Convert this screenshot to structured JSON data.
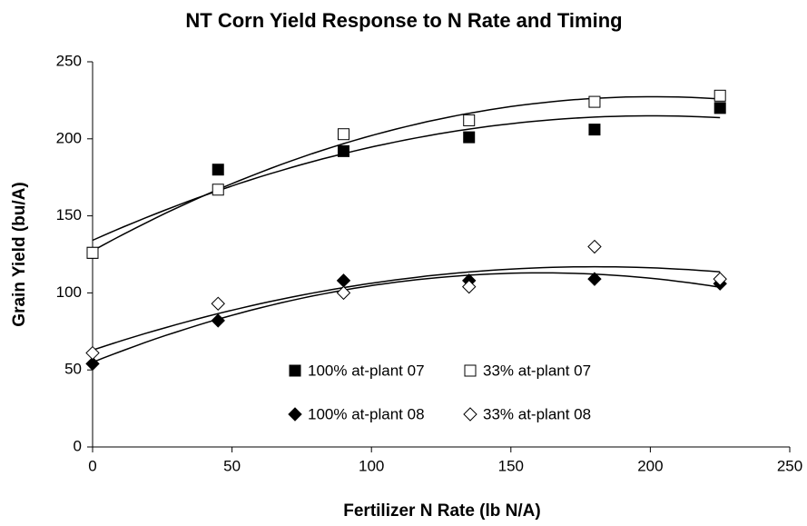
{
  "chart_data": {
    "type": "scatter",
    "title": "NT Corn Yield Response to N Rate and Timing",
    "x_label": "Fertilizer N Rate (lb N/A)",
    "y_label": "Grain Yield (bu/A)",
    "x": [
      0,
      45,
      90,
      135,
      180,
      225
    ],
    "series": [
      {
        "name": "100% at-plant 07",
        "color": "#000000",
        "marker": "square",
        "filled": true,
        "values": [
          126,
          180,
          192,
          201,
          206,
          220
        ]
      },
      {
        "name": "33% at-plant 07",
        "color": "#000000",
        "marker": "square",
        "filled": false,
        "values": [
          126,
          167,
          203,
          212,
          224,
          228
        ]
      },
      {
        "name": "100% at-plant 08",
        "color": "#000000",
        "marker": "diamond",
        "filled": true,
        "values": [
          54,
          82,
          108,
          108,
          109,
          106
        ]
      },
      {
        "name": "33% at-plant 08",
        "color": "#000000",
        "marker": "diamond",
        "filled": false,
        "values": [
          61,
          93,
          100,
          104,
          130,
          109
        ]
      }
    ],
    "trendline": "quadratic",
    "xlim": [
      0,
      250
    ],
    "xticks": [
      0,
      50,
      100,
      150,
      200,
      250
    ],
    "ylim": [
      0,
      250
    ],
    "yticks": [
      0,
      50,
      100,
      150,
      200,
      250
    ],
    "grid": false,
    "legend": "bottom"
  }
}
